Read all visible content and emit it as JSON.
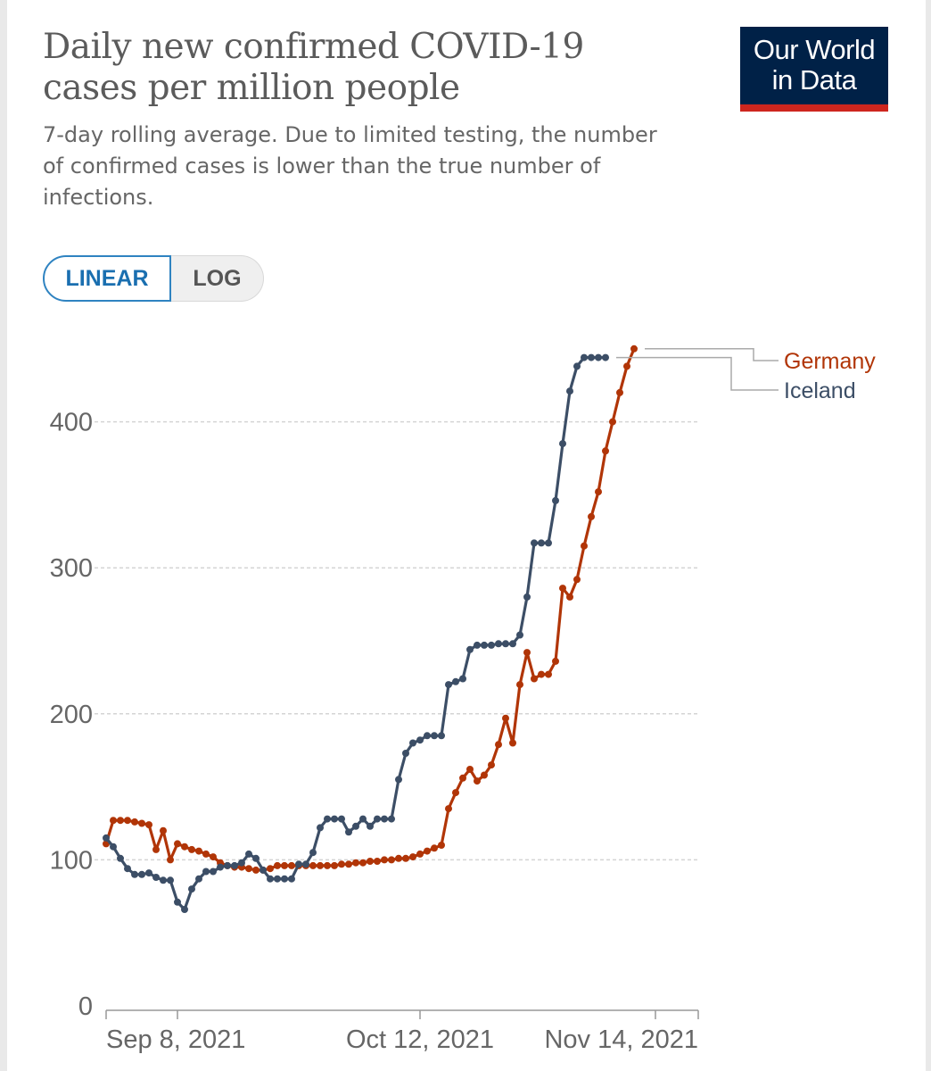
{
  "colors": {
    "germany": "#b13507",
    "iceland": "#3c4e66",
    "gridline": "#d4d4d4",
    "axis": "#999999"
  },
  "header": {
    "title": "Daily new confirmed COVID-19 cases per million people",
    "subtitle": "7-day rolling average. Due to limited testing, the number of confirmed cases is lower than the true number of infections."
  },
  "logo": {
    "line1": "Our World",
    "line2": "in Data"
  },
  "scale_toggle": {
    "linear": "LINEAR",
    "log": "LOG",
    "selected": "LINEAR"
  },
  "chart_data": {
    "type": "line",
    "title": "Daily new confirmed COVID-19 cases per million people",
    "xlabel": "",
    "ylabel": "",
    "ylim": [
      0,
      450
    ],
    "yticks": [
      0,
      100,
      200,
      300,
      400
    ],
    "x_start": "Aug 29, 2021",
    "x_end": "Nov 21, 2021",
    "xtick_labels": [
      "Sep 8, 2021",
      "Oct 12, 2021",
      "Nov 14, 2021"
    ],
    "xtick_positions": [
      10,
      44,
      77
    ],
    "series": [
      {
        "name": "Germany",
        "values": [
          111,
          127,
          127,
          127,
          126,
          125,
          124,
          107,
          120,
          100,
          111,
          109,
          107,
          106,
          104,
          102,
          98,
          96,
          95,
          95,
          94,
          93,
          93,
          94,
          96,
          96,
          96,
          96,
          96,
          96,
          96,
          96,
          96,
          97,
          97,
          98,
          98,
          99,
          99,
          100,
          100,
          101,
          101,
          102,
          104,
          106,
          108,
          110,
          135,
          146,
          156,
          162,
          154,
          158,
          165,
          179,
          197,
          180,
          220,
          242,
          224,
          227,
          227,
          236,
          286,
          280,
          292,
          315,
          335,
          352,
          380,
          400,
          420,
          438,
          450
        ]
      },
      {
        "name": "Iceland",
        "values": [
          115,
          109,
          101,
          94,
          90,
          90,
          91,
          88,
          86,
          86,
          71,
          66,
          80,
          87,
          92,
          92,
          95,
          96,
          96,
          98,
          104,
          101,
          93,
          87,
          87,
          87,
          87,
          97,
          97,
          105,
          122,
          128,
          128,
          128,
          119,
          123,
          128,
          123,
          128,
          128,
          128,
          155,
          173,
          180,
          182,
          185,
          185,
          185,
          220,
          222,
          224,
          244,
          247,
          247,
          247,
          248,
          248,
          248,
          254,
          280,
          317,
          317,
          317,
          346,
          385,
          421,
          438,
          444,
          444,
          444,
          444
        ]
      }
    ]
  }
}
